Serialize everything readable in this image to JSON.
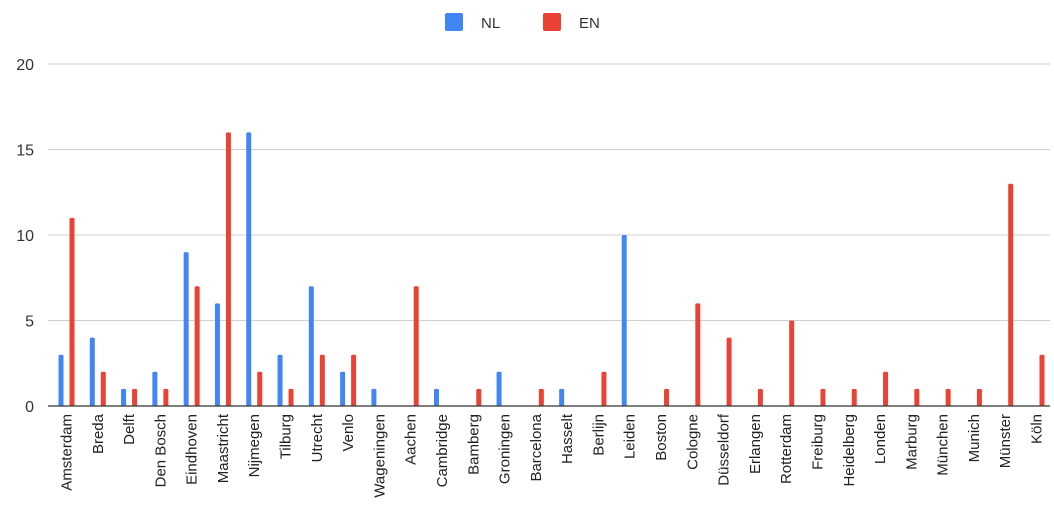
{
  "chart_data": {
    "type": "bar",
    "categories": [
      "Amsterdam",
      "Breda",
      "Delft",
      "Den Bosch",
      "Eindhoven",
      "Maastricht",
      "Nijmegen",
      "Tilburg",
      "Utrecht",
      "Venlo",
      "Wageningen",
      "Aachen",
      "Cambridge",
      "Bamberg",
      "Groningen",
      "Barcelona",
      "Hasselt",
      "Berlijn",
      "Leiden",
      "Boston",
      "Cologne",
      "Düsseldorf",
      "Erlangen",
      "Rotterdam",
      "Freiburg",
      "Heidelberg",
      "Londen",
      "Marburg",
      "München",
      "Munich",
      "Münster",
      "Köln"
    ],
    "series": [
      {
        "name": "NL",
        "color": "#4285f4",
        "values": [
          3,
          4,
          1,
          2,
          9,
          6,
          16,
          3,
          7,
          2,
          1,
          0,
          1,
          0,
          2,
          0,
          1,
          0,
          10,
          0,
          0,
          0,
          0,
          0,
          0,
          0,
          0,
          0,
          0,
          0,
          0,
          0
        ]
      },
      {
        "name": "EN",
        "color": "#ea4335",
        "values": [
          11,
          2,
          1,
          1,
          7,
          16,
          2,
          1,
          3,
          3,
          0,
          7,
          0,
          1,
          0,
          1,
          0,
          2,
          0,
          1,
          6,
          4,
          1,
          5,
          1,
          1,
          2,
          1,
          1,
          1,
          13,
          3
        ]
      }
    ],
    "ylim": [
      0,
      20
    ],
    "yticks": [
      "0",
      "5",
      "10",
      "15",
      "20"
    ],
    "legend_position": "top-center",
    "grid": true
  }
}
